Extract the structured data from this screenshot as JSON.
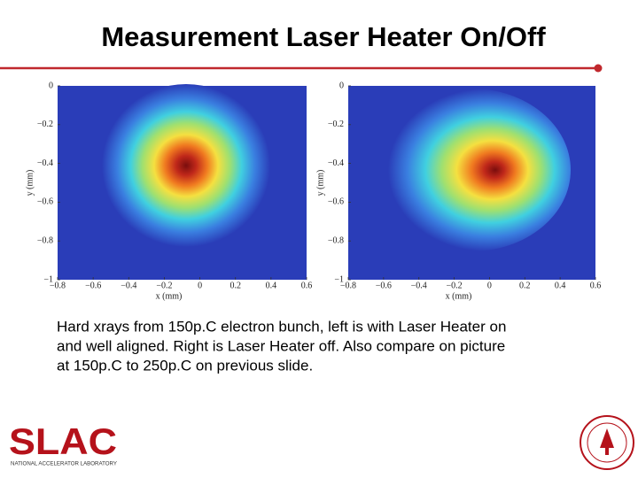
{
  "title": "Measurement Laser Heater On/Off",
  "panels": [
    {
      "x_label": "x (mm)",
      "y_label": "y (mm)",
      "xlim": [
        -0.8,
        0.6
      ],
      "ylim": [
        -1,
        0
      ],
      "xticks": [
        {
          "value": -0.8,
          "label": "−0.8"
        },
        {
          "value": -0.6,
          "label": "−0.6"
        },
        {
          "value": -0.4,
          "label": "−0.4"
        },
        {
          "value": -0.2,
          "label": "−0.2"
        },
        0,
        0.2,
        0.4,
        0.6
      ],
      "yticks": [
        0,
        {
          "value": -0.2,
          "label": "−0.2"
        },
        {
          "value": -0.4,
          "label": "−0.4"
        },
        {
          "value": -0.6,
          "label": "−0.6"
        },
        {
          "value": -0.8,
          "label": "−0.8"
        },
        {
          "value": -1,
          "label": "−1"
        }
      ]
    },
    {
      "x_label": "x (mm)",
      "y_label": "y (mm)",
      "xlim": [
        -0.8,
        0.6
      ],
      "ylim": [
        -1,
        0
      ],
      "xticks": [
        {
          "value": -0.8,
          "label": "−0.8"
        },
        {
          "value": -0.6,
          "label": "−0.6"
        },
        {
          "value": -0.4,
          "label": "−0.4"
        },
        {
          "value": -0.2,
          "label": "−0.2"
        },
        0,
        0.2,
        0.4,
        0.6
      ],
      "yticks": [
        0,
        {
          "value": -0.2,
          "label": "−0.2"
        },
        {
          "value": -0.4,
          "label": "−0.4"
        },
        {
          "value": -0.6,
          "label": "−0.6"
        },
        {
          "value": -0.8,
          "label": "−0.8"
        },
        {
          "value": -1,
          "label": "−1"
        }
      ]
    }
  ],
  "caption_lines": [
    "Hard xrays from 150p.C electron bunch, left is with Laser Heater on",
    "and well aligned. Right is Laser Heater off. Also compare on picture",
    "at 150p.C to 250p.C on previous slide."
  ],
  "logo": {
    "name": "SLAC",
    "subtitle": "NATIONAL ACCELERATOR LABORATORY"
  }
}
